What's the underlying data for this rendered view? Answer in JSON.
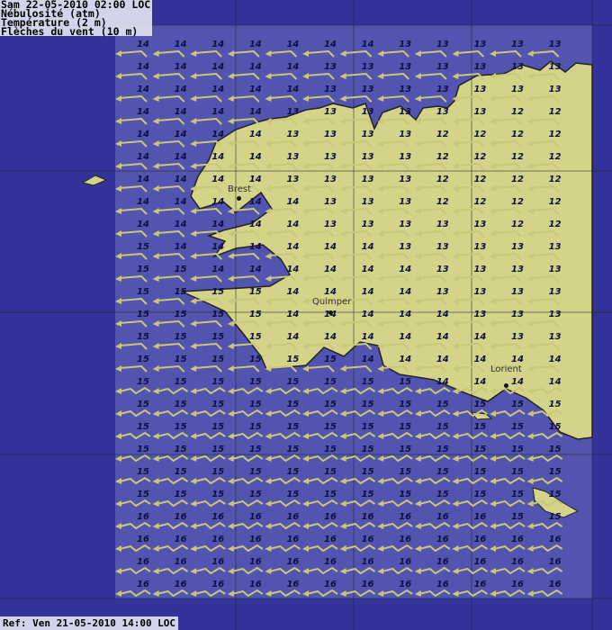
{
  "header": {
    "line1": "Sam 22-05-2010 02:00 LOC",
    "line2": "Nébulosité (atm)",
    "line3": "Température (2 m)",
    "line4": "Flèches du vent (10 m)"
  },
  "ref": "Ref: Ven 21-05-2010 14:00 LOC",
  "cities": [
    {
      "name": "Brest"
    },
    {
      "name": "Quimper"
    },
    {
      "name": "Lorient"
    }
  ],
  "colors": {
    "outer": "#33339a",
    "sea": "#5353b0",
    "land": "#d3d38a",
    "wind": "#c8c878",
    "text": "#101040"
  },
  "wind_icon": "wind-barb-arrow",
  "temperatures": [
    [
      14,
      14,
      14,
      14,
      14,
      14,
      14,
      13,
      13,
      13,
      13,
      13
    ],
    [
      14,
      14,
      14,
      14,
      14,
      13,
      13,
      13,
      13,
      13,
      13,
      13
    ],
    [
      14,
      14,
      14,
      14,
      14,
      13,
      13,
      13,
      13,
      13,
      13,
      13
    ],
    [
      14,
      14,
      14,
      14,
      13,
      13,
      13,
      13,
      13,
      13,
      12,
      12
    ],
    [
      14,
      14,
      14,
      14,
      13,
      13,
      13,
      13,
      12,
      12,
      12,
      12
    ],
    [
      14,
      14,
      14,
      14,
      13,
      13,
      13,
      13,
      12,
      12,
      12,
      12
    ],
    [
      14,
      14,
      14,
      14,
      13,
      13,
      13,
      13,
      12,
      12,
      12,
      12
    ],
    [
      14,
      14,
      14,
      14,
      14,
      13,
      13,
      13,
      12,
      12,
      12,
      12
    ],
    [
      14,
      14,
      14,
      14,
      14,
      13,
      13,
      13,
      13,
      13,
      12,
      12
    ],
    [
      15,
      14,
      14,
      14,
      14,
      14,
      14,
      13,
      13,
      13,
      13,
      13
    ],
    [
      15,
      15,
      14,
      14,
      14,
      14,
      14,
      14,
      13,
      13,
      13,
      13
    ],
    [
      15,
      15,
      15,
      15,
      14,
      14,
      14,
      14,
      13,
      13,
      13,
      13
    ],
    [
      15,
      15,
      15,
      15,
      14,
      14,
      14,
      14,
      14,
      13,
      13,
      13
    ],
    [
      15,
      15,
      15,
      15,
      14,
      14,
      14,
      14,
      14,
      14,
      13,
      13
    ],
    [
      15,
      15,
      15,
      15,
      15,
      15,
      14,
      14,
      14,
      14,
      14,
      14
    ],
    [
      15,
      15,
      15,
      15,
      15,
      15,
      15,
      15,
      14,
      14,
      14,
      14
    ],
    [
      15,
      15,
      15,
      15,
      15,
      15,
      15,
      15,
      15,
      15,
      15,
      15
    ],
    [
      15,
      15,
      15,
      15,
      15,
      15,
      15,
      15,
      15,
      15,
      15,
      15
    ],
    [
      15,
      15,
      15,
      15,
      15,
      15,
      15,
      15,
      15,
      15,
      15,
      15
    ],
    [
      15,
      15,
      15,
      15,
      15,
      15,
      15,
      15,
      15,
      15,
      15,
      15
    ],
    [
      15,
      15,
      15,
      15,
      15,
      15,
      15,
      15,
      15,
      15,
      15,
      15
    ],
    [
      16,
      16,
      16,
      16,
      16,
      16,
      16,
      16,
      16,
      16,
      15,
      15
    ],
    [
      16,
      16,
      16,
      16,
      16,
      16,
      16,
      16,
      16,
      16,
      16,
      16
    ],
    [
      16,
      16,
      16,
      16,
      16,
      16,
      16,
      16,
      16,
      16,
      16,
      16
    ],
    [
      16,
      16,
      16,
      16,
      16,
      16,
      16,
      16,
      16,
      16,
      16,
      16
    ]
  ]
}
